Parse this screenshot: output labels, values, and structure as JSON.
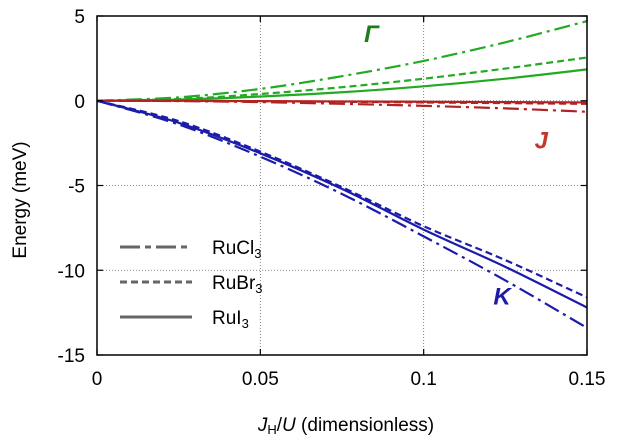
{
  "chart_data": {
    "type": "line",
    "xlabel": {
      "var": "J",
      "sub": "H",
      "mid": "/",
      "var2": "U",
      "rest": " (dimensionless)"
    },
    "ylabel": "Energy (meV)",
    "xlim": [
      0,
      0.15
    ],
    "ylim": [
      -15,
      5
    ],
    "x_ticks": [
      {
        "value": 0,
        "label": "0"
      },
      {
        "value": 0.05,
        "label": "0.05"
      },
      {
        "value": 0.1,
        "label": "0.1"
      },
      {
        "value": 0.15,
        "label": "0.15"
      }
    ],
    "y_ticks": [
      {
        "value": 5,
        "label": "5"
      },
      {
        "value": 0,
        "label": "0"
      },
      {
        "value": -5,
        "label": "-5"
      },
      {
        "value": -10,
        "label": "-10"
      },
      {
        "value": -15,
        "label": "-15"
      }
    ],
    "grid": true,
    "legend": {
      "placement": "bottom-left",
      "entries": [
        {
          "base": "RuCl",
          "sub": "3",
          "style": "dashdot"
        },
        {
          "base": "RuBr",
          "sub": "3",
          "style": "dashed"
        },
        {
          "base": "RuI",
          "sub": "3",
          "style": "solid"
        }
      ]
    },
    "series_labels": [
      {
        "text": "Γ",
        "color": "#1a7f1a",
        "x": 0.084,
        "y": 4.0
      },
      {
        "text": "J",
        "color": "#c0392b",
        "x": 0.136,
        "y": -2.3
      },
      {
        "text": "K",
        "color": "#1c1ca8",
        "x": 0.124,
        "y": -11.5
      }
    ],
    "series": [
      {
        "param": "Γ",
        "material": "RuCl3",
        "style": "dashdot",
        "color": "#22aa22",
        "x": [
          0,
          0.025,
          0.05,
          0.075,
          0.1,
          0.125,
          0.15
        ],
        "values": [
          0,
          0.2,
          0.7,
          1.45,
          2.35,
          3.45,
          4.7
        ]
      },
      {
        "param": "Γ",
        "material": "RuBr3",
        "style": "dashed",
        "color": "#22aa22",
        "x": [
          0,
          0.025,
          0.05,
          0.075,
          0.1,
          0.125,
          0.15
        ],
        "values": [
          0,
          0.1,
          0.4,
          0.8,
          1.3,
          1.9,
          2.55
        ]
      },
      {
        "param": "Γ",
        "material": "RuI3",
        "style": "solid",
        "color": "#22aa22",
        "x": [
          0,
          0.025,
          0.05,
          0.075,
          0.1,
          0.125,
          0.15
        ],
        "values": [
          0,
          0.07,
          0.25,
          0.5,
          0.85,
          1.3,
          1.85
        ]
      },
      {
        "param": "J",
        "material": "RuCl3",
        "style": "dashdot",
        "color": "#b22222",
        "x": [
          0,
          0.025,
          0.05,
          0.075,
          0.1,
          0.125,
          0.15
        ],
        "values": [
          0,
          -0.02,
          -0.08,
          -0.18,
          -0.3,
          -0.45,
          -0.65
        ]
      },
      {
        "param": "J",
        "material": "RuBr3",
        "style": "dashed",
        "color": "#b22222",
        "x": [
          0,
          0.025,
          0.05,
          0.075,
          0.1,
          0.125,
          0.15
        ],
        "values": [
          0,
          -0.01,
          -0.03,
          -0.06,
          -0.1,
          -0.14,
          -0.18
        ]
      },
      {
        "param": "J",
        "material": "RuI3",
        "style": "solid",
        "color": "#b22222",
        "x": [
          0,
          0.025,
          0.05,
          0.075,
          0.1,
          0.125,
          0.15
        ],
        "values": [
          0,
          0,
          -0.02,
          -0.04,
          -0.06,
          -0.08,
          -0.1
        ]
      },
      {
        "param": "K",
        "material": "RuCl3",
        "style": "dashdot",
        "color": "#1c1caa",
        "x": [
          0,
          0.025,
          0.05,
          0.075,
          0.1,
          0.125,
          0.15
        ],
        "values": [
          0,
          -1.4,
          -3.3,
          -5.5,
          -8.0,
          -10.6,
          -13.4
        ]
      },
      {
        "param": "K",
        "material": "RuBr3",
        "style": "dashed",
        "color": "#1c1caa",
        "x": [
          0,
          0.025,
          0.05,
          0.075,
          0.1,
          0.125,
          0.15
        ],
        "values": [
          0,
          -1.2,
          -3.0,
          -5.1,
          -7.4,
          -9.4,
          -11.6
        ]
      },
      {
        "param": "K",
        "material": "RuI3",
        "style": "solid",
        "color": "#1c1caa",
        "x": [
          0,
          0.025,
          0.05,
          0.075,
          0.1,
          0.125,
          0.15
        ],
        "values": [
          0,
          -1.3,
          -3.1,
          -5.2,
          -7.6,
          -9.8,
          -12.2
        ]
      }
    ]
  }
}
